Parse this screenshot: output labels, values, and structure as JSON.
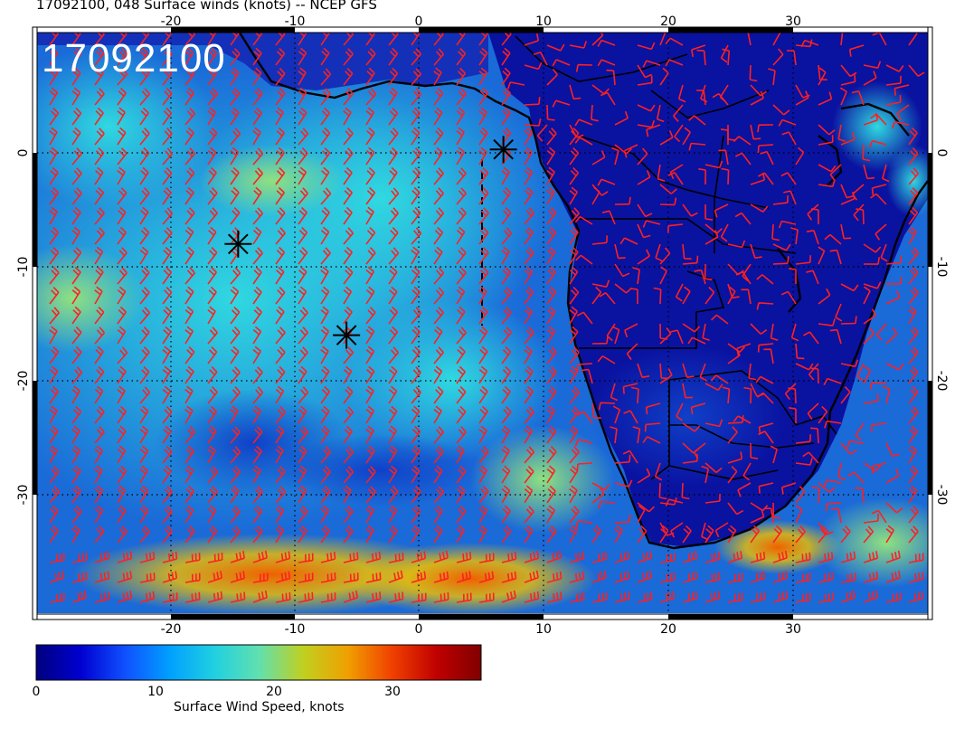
{
  "title": "17092100, 048 Surface winds (knots) -- NCEP GFS",
  "stamp": "17092100",
  "map": {
    "lon_range": [
      -30,
      41
    ],
    "lat_range": [
      -40,
      10
    ],
    "lon_ticks": [
      "-20",
      "-10",
      "0",
      "10",
      "20",
      "30"
    ],
    "lat_ticks": [
      "0",
      "-10",
      "-20",
      "-30"
    ],
    "gridlines": "dotted",
    "barb_color": "#ff2020",
    "coastline_color": "#000000",
    "markers": [
      {
        "label": "star-marker",
        "lon": -14.5,
        "lat": -8.0
      },
      {
        "label": "star-marker",
        "lon": -5.8,
        "lat": -16.0
      },
      {
        "label": "star-marker",
        "lon": 6.8,
        "lat": 0.3
      }
    ]
  },
  "colorbar": {
    "label": "Surface Wind Speed, knots",
    "ticks": [
      "0",
      "10",
      "20",
      "30"
    ],
    "range": [
      0,
      36
    ],
    "colors": [
      "#00007f",
      "#0000d0",
      "#1050ff",
      "#00a0ff",
      "#20d0e0",
      "#60e0b0",
      "#c0d020",
      "#f0a000",
      "#f04000",
      "#c00000",
      "#800000"
    ]
  }
}
